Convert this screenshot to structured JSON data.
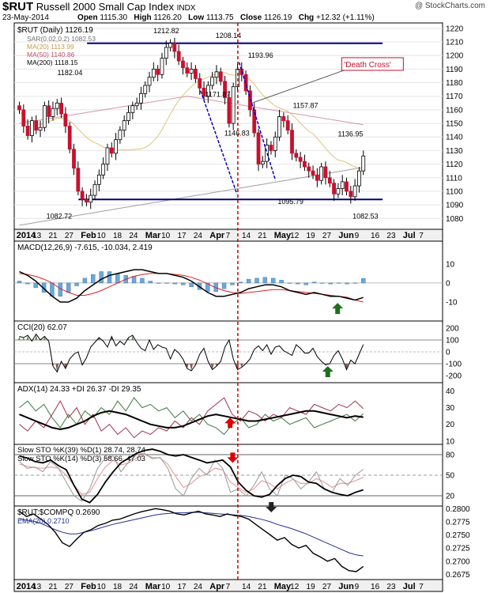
{
  "header": {
    "symbol": "$RUT",
    "name": "Russell 2000 Small Cap Index",
    "exchange": "INDX",
    "watermark": "@ StockCharts.com",
    "date": "23-May-2014",
    "open_label": "Open",
    "open": "1115.30",
    "high_label": "High",
    "high": "1126.20",
    "low_label": "Low",
    "low": "1113.75",
    "close_label": "Close",
    "close": "1126.19",
    "chg_label": "Chg",
    "chg": "+12.32 (+1.11%)"
  },
  "colors": {
    "up": "#ffffff",
    "down": "#c8102e",
    "sma20": "#e2c27a",
    "sma50": "#c0506a",
    "sma200": "#a0a0a0",
    "macd_hist": "#6aa8d8",
    "cci_fill_pos": "#5f8a5f",
    "cci_fill_neg": "#8a5a50",
    "plusdi": "#3a7a3a",
    "minusdi": "#a03050",
    "vline": "#cc0000",
    "trendline": "#0000cc",
    "ema": "#203090",
    "arrow_green": "#1e6e1e",
    "arrow_red": "#dd0000",
    "arrow_black": "#222222"
  },
  "xaxis": {
    "labels": [
      "2014",
      "13",
      "21",
      "27",
      "Feb",
      "10",
      "18",
      "24",
      "Mar",
      "10",
      "17",
      "24",
      "Apr",
      "7",
      "14",
      "21",
      "May",
      "12",
      "19",
      "27",
      "Jun",
      "9",
      "16",
      "23",
      "Jul",
      "7"
    ],
    "bold": [
      "2014",
      "Feb",
      "Mar",
      "Apr",
      "May",
      "Jun",
      "Jul"
    ]
  },
  "chart_data": [
    {
      "type": "candlestick",
      "title": "$RUT (Daily) 1126.19",
      "legend": [
        {
          "text": "SAR(0.02,0.2) 1082.53",
          "color": "#707070"
        },
        {
          "text": "MA(20) 1113.99",
          "color": "#c49a4a"
        },
        {
          "text": "MA(50) 1140.86",
          "color": "#c0506a"
        },
        {
          "text": "MA(200) 1118.15",
          "color": "#000000"
        }
      ],
      "ylim": [
        1072,
        1224
      ],
      "yticks": [
        1080,
        1090,
        1100,
        1110,
        1120,
        1130,
        1140,
        1150,
        1160,
        1170,
        1180,
        1190,
        1200,
        1210,
        1220
      ],
      "closes": [
        1160,
        1148,
        1141,
        1152,
        1145,
        1147,
        1163,
        1155,
        1161,
        1165,
        1157,
        1148,
        1131,
        1117,
        1100,
        1094,
        1092,
        1097,
        1105,
        1112,
        1120,
        1132,
        1128,
        1138,
        1145,
        1152,
        1158,
        1163,
        1165,
        1172,
        1178,
        1184,
        1190,
        1186,
        1198,
        1206,
        1209,
        1203,
        1196,
        1191,
        1187,
        1190,
        1183,
        1176,
        1170,
        1178,
        1184,
        1188,
        1181,
        1169,
        1150,
        1177,
        1190,
        1186,
        1174,
        1160,
        1143,
        1120,
        1122,
        1134,
        1130,
        1140,
        1155,
        1152,
        1145,
        1128,
        1125,
        1122,
        1118,
        1115,
        1112,
        1108,
        1118,
        1110,
        1106,
        1098,
        1102,
        1107,
        1100,
        1096,
        1104,
        1115,
        1126
      ],
      "annotations": [
        {
          "text": "1212.82",
          "x": 35.5,
          "y": 1216.5
        },
        {
          "text": "1208.14",
          "x": 50,
          "y": 1213
        },
        {
          "text": "1182.04",
          "x": 13,
          "y": 1185.5
        },
        {
          "text": "1171.87",
          "x": 47.5,
          "y": 1169.5
        },
        {
          "text": "1193.96",
          "x": 57.5,
          "y": 1198.5
        },
        {
          "text": "1157.87",
          "x": 68,
          "y": 1161.5
        },
        {
          "text": "1146.83",
          "x": 52,
          "y": 1141
        },
        {
          "text": "1136.95",
          "x": 78.5,
          "y": 1140.5
        },
        {
          "text": "1095.79",
          "x": 64.5,
          "y": 1090.5
        },
        {
          "text": "1082.72",
          "x": 10.5,
          "y": 1080
        },
        {
          "text": "1082.53",
          "x": 82,
          "y": 1080
        },
        {
          "text": "'Death Cross'",
          "x": 77,
          "y": 1192,
          "boxed": true
        }
      ],
      "support": 1094,
      "resistance": 1209
    },
    {
      "type": "bar",
      "title": "MACD(12,26,9) -7.615, -10.034, 2.419",
      "ylim": [
        -20,
        22
      ],
      "yticks": [
        -10,
        0,
        10
      ],
      "macd_line": [
        6,
        4,
        1,
        -3,
        -7,
        -10,
        -10,
        -8,
        -4,
        -1,
        2,
        4,
        5,
        6,
        7,
        7,
        6,
        5,
        5,
        4,
        3,
        1,
        -2,
        -5,
        -7,
        -7,
        -6,
        -5,
        -3,
        -2,
        -1,
        -1,
        -2,
        -4,
        -5,
        -6,
        -5,
        -6,
        -7,
        -7,
        -8,
        -9,
        -7.6
      ],
      "signal_line": [
        5,
        4.5,
        3.5,
        2,
        0,
        -3,
        -5,
        -6.5,
        -6.5,
        -5.5,
        -4,
        -2,
        0,
        2,
        3.5,
        4.5,
        5,
        5,
        5,
        4.5,
        4,
        3,
        1.5,
        -0.5,
        -2.5,
        -4,
        -5,
        -5.5,
        -5,
        -4.5,
        -4,
        -3.5,
        -3.5,
        -4,
        -4.5,
        -5,
        -5.5,
        -6,
        -6.5,
        -7,
        -7.5,
        -9,
        -10
      ],
      "histogram": [
        1,
        -0.5,
        -2.5,
        -5,
        -7,
        -7,
        -5,
        -1.5,
        2.5,
        4.5,
        6,
        6,
        5,
        4,
        3.5,
        2.5,
        1,
        0,
        0,
        -0.5,
        -1,
        -2,
        -3.5,
        -4.5,
        -4.5,
        -3,
        -1,
        0.5,
        2,
        2.5,
        3,
        2.5,
        1.5,
        0,
        -0.5,
        -1,
        0.5,
        0,
        -0.5,
        0,
        -0.5,
        0,
        2.4
      ]
    },
    {
      "type": "line",
      "title": "CCI(20) 62.07",
      "ylim": [
        -260,
        260
      ],
      "yticks": [
        -200,
        -100,
        0,
        100,
        200
      ],
      "values": [
        130,
        120,
        140,
        90,
        150,
        100,
        130,
        90,
        -120,
        -170,
        -80,
        -140,
        -60,
        -20,
        0,
        -110,
        -50,
        40,
        80,
        120,
        90,
        40,
        130,
        50,
        90,
        60,
        120,
        140,
        80,
        30,
        10,
        100,
        20,
        60,
        40,
        30,
        -60,
        20,
        -10,
        -60,
        -140,
        -160,
        -110,
        -20,
        30,
        -80,
        -150,
        -120,
        -80,
        40,
        100,
        -60,
        -150,
        -130,
        -100,
        -60,
        20,
        50,
        10,
        60,
        -20,
        40,
        50,
        10,
        -10,
        -30,
        60,
        30,
        -10,
        -10,
        30,
        -40,
        -80,
        -110,
        -100,
        -30,
        10,
        -60,
        -150,
        -70,
        -100,
        -20,
        62
      ]
    },
    {
      "type": "line",
      "title": "ADX(14) 24.33 +DI 26.37 -DI 29.35",
      "ylim": [
        8,
        45
      ],
      "yticks": [
        10,
        20,
        30,
        40
      ],
      "adx": [
        26,
        24,
        22,
        20,
        18,
        17,
        18,
        20,
        22,
        25,
        27,
        28,
        27,
        26,
        24,
        22,
        20,
        19,
        18,
        18,
        19,
        21,
        23,
        25,
        26,
        25,
        24,
        23,
        22,
        22,
        23,
        24,
        25,
        26,
        27,
        28,
        28,
        27,
        26,
        25,
        24,
        25,
        24.3
      ],
      "plus_di": [
        30,
        34,
        28,
        32,
        24,
        18,
        26,
        20,
        28,
        24,
        30,
        26,
        34,
        28,
        36,
        30,
        32,
        28,
        30,
        24,
        28,
        22,
        26,
        20,
        18,
        14,
        20,
        24,
        18,
        20,
        26,
        22,
        24,
        20,
        22,
        24,
        18,
        20,
        22,
        24,
        26,
        22,
        26.4
      ],
      "minus_di": [
        20,
        16,
        22,
        18,
        26,
        34,
        24,
        30,
        20,
        26,
        16,
        20,
        14,
        18,
        12,
        16,
        14,
        18,
        16,
        22,
        18,
        24,
        20,
        28,
        32,
        36,
        26,
        22,
        28,
        26,
        22,
        26,
        24,
        30,
        28,
        26,
        32,
        30,
        28,
        32,
        30,
        34,
        29.4
      ]
    },
    {
      "type": "line",
      "title": "Slow STO %K(39) %D(1) 28.74, 28.74",
      "title2": "Slow STO %K(14) %D(3) 58.66, 47.03",
      "ylim": [
        5,
        95
      ],
      "yticks": [
        20,
        50,
        80
      ],
      "sto39": [
        78,
        75,
        70,
        68,
        72,
        64,
        58,
        35,
        15,
        10,
        22,
        40,
        55,
        68,
        75,
        82,
        86,
        88,
        85,
        80,
        78,
        80,
        76,
        72,
        68,
        70,
        72,
        62,
        40,
        28,
        20,
        18,
        22,
        35,
        45,
        50,
        48,
        40,
        38,
        30,
        25,
        22,
        20,
        25,
        28.7
      ],
      "sto14": [
        70,
        60,
        62,
        55,
        70,
        60,
        40,
        20,
        12,
        30,
        60,
        75,
        78,
        55,
        70,
        80,
        82,
        74,
        76,
        60,
        30,
        20,
        45,
        60,
        50,
        72,
        60,
        25,
        30,
        20,
        35,
        55,
        30,
        20,
        50,
        45,
        30,
        40,
        55,
        30,
        25,
        45,
        35,
        50,
        58.7
      ],
      "sto14d": [
        66,
        63,
        61,
        60,
        62,
        60,
        50,
        35,
        22,
        25,
        45,
        62,
        72,
        65,
        68,
        75,
        80,
        76,
        75,
        66,
        48,
        32,
        38,
        48,
        52,
        60,
        58,
        40,
        32,
        25,
        30,
        42,
        38,
        30,
        38,
        44,
        38,
        38,
        45,
        40,
        32,
        38,
        38,
        42,
        47
      ]
    },
    {
      "type": "line",
      "title": "$RUT:$COMPQ 0.2690",
      "legend": [
        {
          "text": "EMA(20) 0.2710",
          "color": "#203090"
        }
      ],
      "ylim": [
        0.2665,
        0.2805
      ],
      "yticks": [
        0.2675,
        0.27,
        0.2725,
        0.275,
        0.2775,
        0.28
      ],
      "ratio": [
        0.2795,
        0.2785,
        0.279,
        0.278,
        0.277,
        0.2755,
        0.2735,
        0.2728,
        0.2742,
        0.2755,
        0.276,
        0.2768,
        0.2772,
        0.2778,
        0.278,
        0.2785,
        0.279,
        0.2794,
        0.2797,
        0.28,
        0.2798,
        0.2795,
        0.279,
        0.2788,
        0.2792,
        0.2795,
        0.279,
        0.2788,
        0.2785,
        0.279,
        0.2787,
        0.2785,
        0.278,
        0.277,
        0.276,
        0.275,
        0.274,
        0.2745,
        0.2732,
        0.2725,
        0.273,
        0.2715,
        0.2708,
        0.27,
        0.2705,
        0.269,
        0.2682,
        0.268,
        0.269
      ],
      "ema": [
        0.278,
        0.2778,
        0.2776,
        0.2772,
        0.2766,
        0.276,
        0.2755,
        0.2752,
        0.2752,
        0.2755,
        0.2758,
        0.2762,
        0.2766,
        0.277,
        0.2773,
        0.2776,
        0.2779,
        0.2782,
        0.2785,
        0.2788,
        0.279,
        0.2791,
        0.2792,
        0.2792,
        0.2793,
        0.2793,
        0.2792,
        0.2791,
        0.279,
        0.2789,
        0.2788,
        0.2787,
        0.2785,
        0.2782,
        0.2779,
        0.2775,
        0.277,
        0.2766,
        0.2762,
        0.2757,
        0.2752,
        0.2746,
        0.274,
        0.2734,
        0.2728,
        0.2722,
        0.2716,
        0.2712,
        0.271
      ]
    }
  ]
}
